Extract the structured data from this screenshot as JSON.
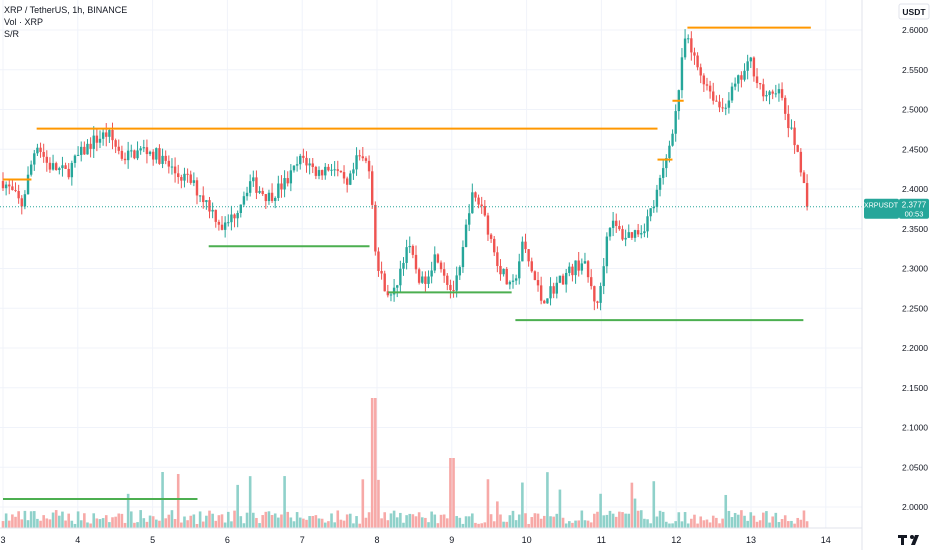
{
  "legend": {
    "symbol_line": "XRP / TetherUS, 1h, BINANCE",
    "volume_line": "Vol · XRP",
    "sr_line": "S/R"
  },
  "price_scale": {
    "currency": "USDT",
    "ticks": [
      "2.6000",
      "2.5500",
      "2.5000",
      "2.4500",
      "2.4000",
      "2.3500",
      "2.3000",
      "2.2500",
      "2.2000",
      "2.1500",
      "2.1000",
      "2.0500",
      "2.0000"
    ]
  },
  "last_price": {
    "symbol": "XRPUSDT",
    "value": "2.3777",
    "countdown": "00:53"
  },
  "time_axis": {
    "labels": [
      "3",
      "4",
      "5",
      "6",
      "7",
      "8",
      "9",
      "10",
      "11",
      "12",
      "13",
      "14"
    ]
  },
  "colors": {
    "up": "#26a69a",
    "down": "#ef5350",
    "resistance": "#ff9800",
    "support": "#4caf50",
    "vol_up": "#8fd1ca",
    "vol_down": "#f7a9a7",
    "price_label_bg": "#26a69a"
  },
  "chart_data": {
    "type": "candlestick",
    "title": "XRP / TetherUS, 1h, BINANCE",
    "ylim": [
      1.975,
      2.635
    ],
    "x_range_days": [
      3.0,
      14.15
    ],
    "last_price": 2.3777,
    "price_series_knots": [
      [
        3.0,
        2.41
      ],
      [
        3.25,
        2.38
      ],
      [
        3.45,
        2.46
      ],
      [
        3.6,
        2.43
      ],
      [
        3.85,
        2.42
      ],
      [
        4.0,
        2.44
      ],
      [
        4.2,
        2.46
      ],
      [
        4.4,
        2.47
      ],
      [
        4.6,
        2.44
      ],
      [
        4.9,
        2.45
      ],
      [
        5.1,
        2.44
      ],
      [
        5.3,
        2.42
      ],
      [
        5.5,
        2.41
      ],
      [
        5.75,
        2.38
      ],
      [
        5.95,
        2.35
      ],
      [
        6.1,
        2.37
      ],
      [
        6.3,
        2.41
      ],
      [
        6.55,
        2.39
      ],
      [
        6.8,
        2.41
      ],
      [
        7.0,
        2.44
      ],
      [
        7.2,
        2.42
      ],
      [
        7.4,
        2.43
      ],
      [
        7.6,
        2.4
      ],
      [
        7.75,
        2.44
      ],
      [
        7.9,
        2.43
      ],
      [
        8.0,
        2.3
      ],
      [
        8.2,
        2.26
      ],
      [
        8.4,
        2.33
      ],
      [
        8.6,
        2.28
      ],
      [
        8.8,
        2.32
      ],
      [
        9.0,
        2.27
      ],
      [
        9.1,
        2.29
      ],
      [
        9.25,
        2.39
      ],
      [
        9.4,
        2.38
      ],
      [
        9.6,
        2.31
      ],
      [
        9.8,
        2.27
      ],
      [
        9.95,
        2.33
      ],
      [
        10.2,
        2.26
      ],
      [
        10.5,
        2.29
      ],
      [
        10.75,
        2.31
      ],
      [
        10.95,
        2.25
      ],
      [
        11.1,
        2.36
      ],
      [
        11.3,
        2.34
      ],
      [
        11.55,
        2.35
      ],
      [
        11.7,
        2.38
      ],
      [
        11.85,
        2.43
      ],
      [
        12.0,
        2.5
      ],
      [
        12.12,
        2.59
      ],
      [
        12.3,
        2.55
      ],
      [
        12.6,
        2.5
      ],
      [
        12.8,
        2.53
      ],
      [
        13.0,
        2.56
      ],
      [
        13.2,
        2.51
      ],
      [
        13.35,
        2.53
      ],
      [
        13.5,
        2.48
      ],
      [
        13.65,
        2.44
      ],
      [
        13.75,
        2.3777
      ]
    ],
    "resistance_levels": [
      {
        "from": 3.0,
        "to": 3.38,
        "price": 2.412
      },
      {
        "from": 3.45,
        "to": 11.75,
        "price": 2.476
      },
      {
        "from": 11.75,
        "to": 11.95,
        "price": 2.437
      },
      {
        "from": 11.95,
        "to": 12.1,
        "price": 2.511
      },
      {
        "from": 12.15,
        "to": 13.8,
        "price": 2.603
      }
    ],
    "support_levels": [
      {
        "from": 5.75,
        "to": 7.9,
        "price": 2.328
      },
      {
        "from": 8.15,
        "to": 9.8,
        "price": 2.27
      },
      {
        "from": 9.85,
        "to": 13.7,
        "price": 2.235
      },
      {
        "from": 3.0,
        "to": 5.6,
        "price": 2.01
      }
    ]
  }
}
